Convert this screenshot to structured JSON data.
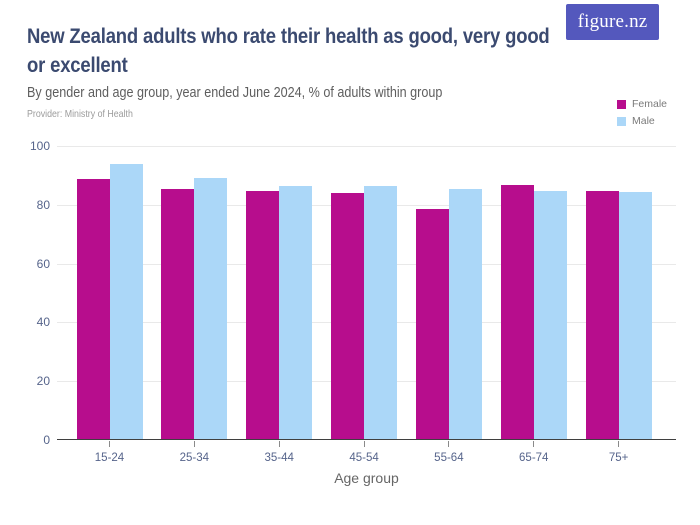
{
  "header": {
    "title": "New Zealand adults who rate their health as good, very good\nor excellent",
    "subtitle": "By gender and age group, year ended June 2024, % of adults within group",
    "provider": "Provider: Ministry of Health",
    "logo_text": "figure.nz"
  },
  "colors": {
    "brand_indigo": "#5458bd",
    "female": "#b70d8d",
    "male": "#abd7f8",
    "title_text": "#3b4a70",
    "axis_label_text": "#56648b",
    "gridline": "#e9e9e9",
    "axis_line": "#3f3f3f"
  },
  "chart_data": {
    "type": "bar",
    "title": "New Zealand adults who rate their health as good, very good or excellent",
    "subtitle": "By gender and age group, year ended June 2024, % of adults within group",
    "categories": [
      "15-24",
      "25-34",
      "35-44",
      "45-54",
      "55-64",
      "65-74",
      "75+"
    ],
    "series": [
      {
        "name": "Female",
        "color": "#b70d8d",
        "values": [
          88.3,
          85.1,
          84.3,
          83.8,
          78.1,
          86.3,
          84.3
        ]
      },
      {
        "name": "Male",
        "color": "#abd7f8",
        "values": [
          93.7,
          88.7,
          85.9,
          86.0,
          85.2,
          84.4,
          84.0
        ]
      }
    ],
    "xlabel": "Age group",
    "ylabel": "",
    "unit": "% of adults within group",
    "ylim": [
      0,
      100
    ],
    "yticks": [
      0,
      20,
      40,
      60,
      80,
      100
    ],
    "grid": true,
    "legend_position": "top-right"
  }
}
